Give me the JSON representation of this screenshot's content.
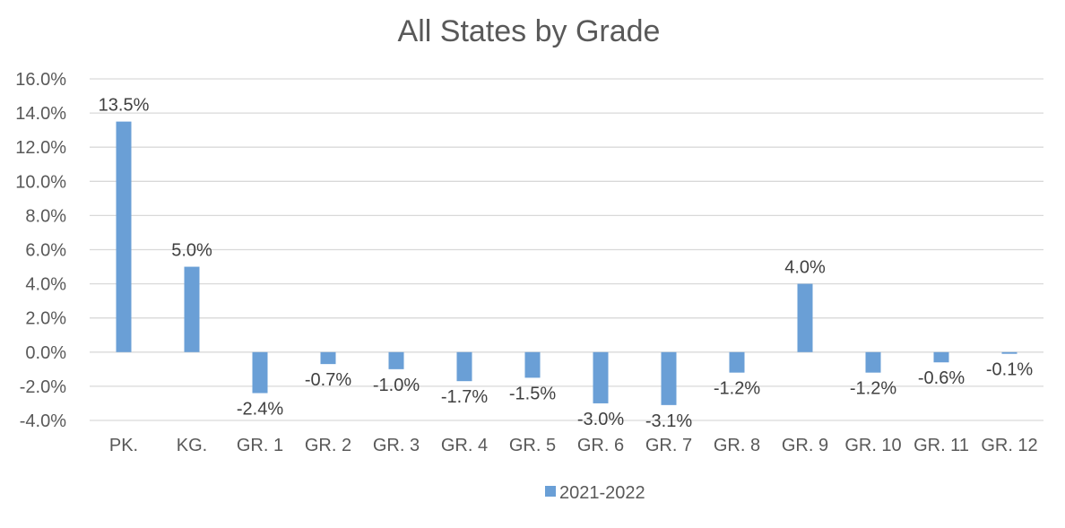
{
  "chart_data": {
    "type": "bar",
    "title": "All States by Grade",
    "xlabel": "",
    "ylabel": "",
    "categories": [
      "PK.",
      "KG.",
      "GR. 1",
      "GR. 2",
      "GR. 3",
      "GR. 4",
      "GR. 5",
      "GR. 6",
      "GR. 7",
      "GR. 8",
      "GR. 9",
      "GR. 10",
      "GR. 11",
      "GR. 12"
    ],
    "series": [
      {
        "name": "2021-2022",
        "values": [
          13.5,
          5.0,
          -2.4,
          -0.7,
          -1.0,
          -1.7,
          -1.5,
          -3.0,
          -3.1,
          -1.2,
          4.0,
          -1.2,
          -0.6,
          -0.1
        ],
        "labels": [
          "13.5%",
          "5.0%",
          "-2.4%",
          "-0.7%",
          "-1.0%",
          "-1.7%",
          "-1.5%",
          "-3.0%",
          "-3.1%",
          "-1.2%",
          "4.0%",
          "-1.2%",
          "-0.6%",
          "-0.1%"
        ],
        "color": "#6a9fd6"
      }
    ],
    "ylim": [
      -4.0,
      16.0
    ],
    "yticks": [
      "16.0%",
      "14.0%",
      "12.0%",
      "10.0%",
      "8.0%",
      "6.0%",
      "4.0%",
      "2.0%",
      "0.0%",
      "-2.0%",
      "-4.0%"
    ],
    "grid": true,
    "legend_position": "bottom",
    "gridline_color": "#d9d9d9"
  }
}
